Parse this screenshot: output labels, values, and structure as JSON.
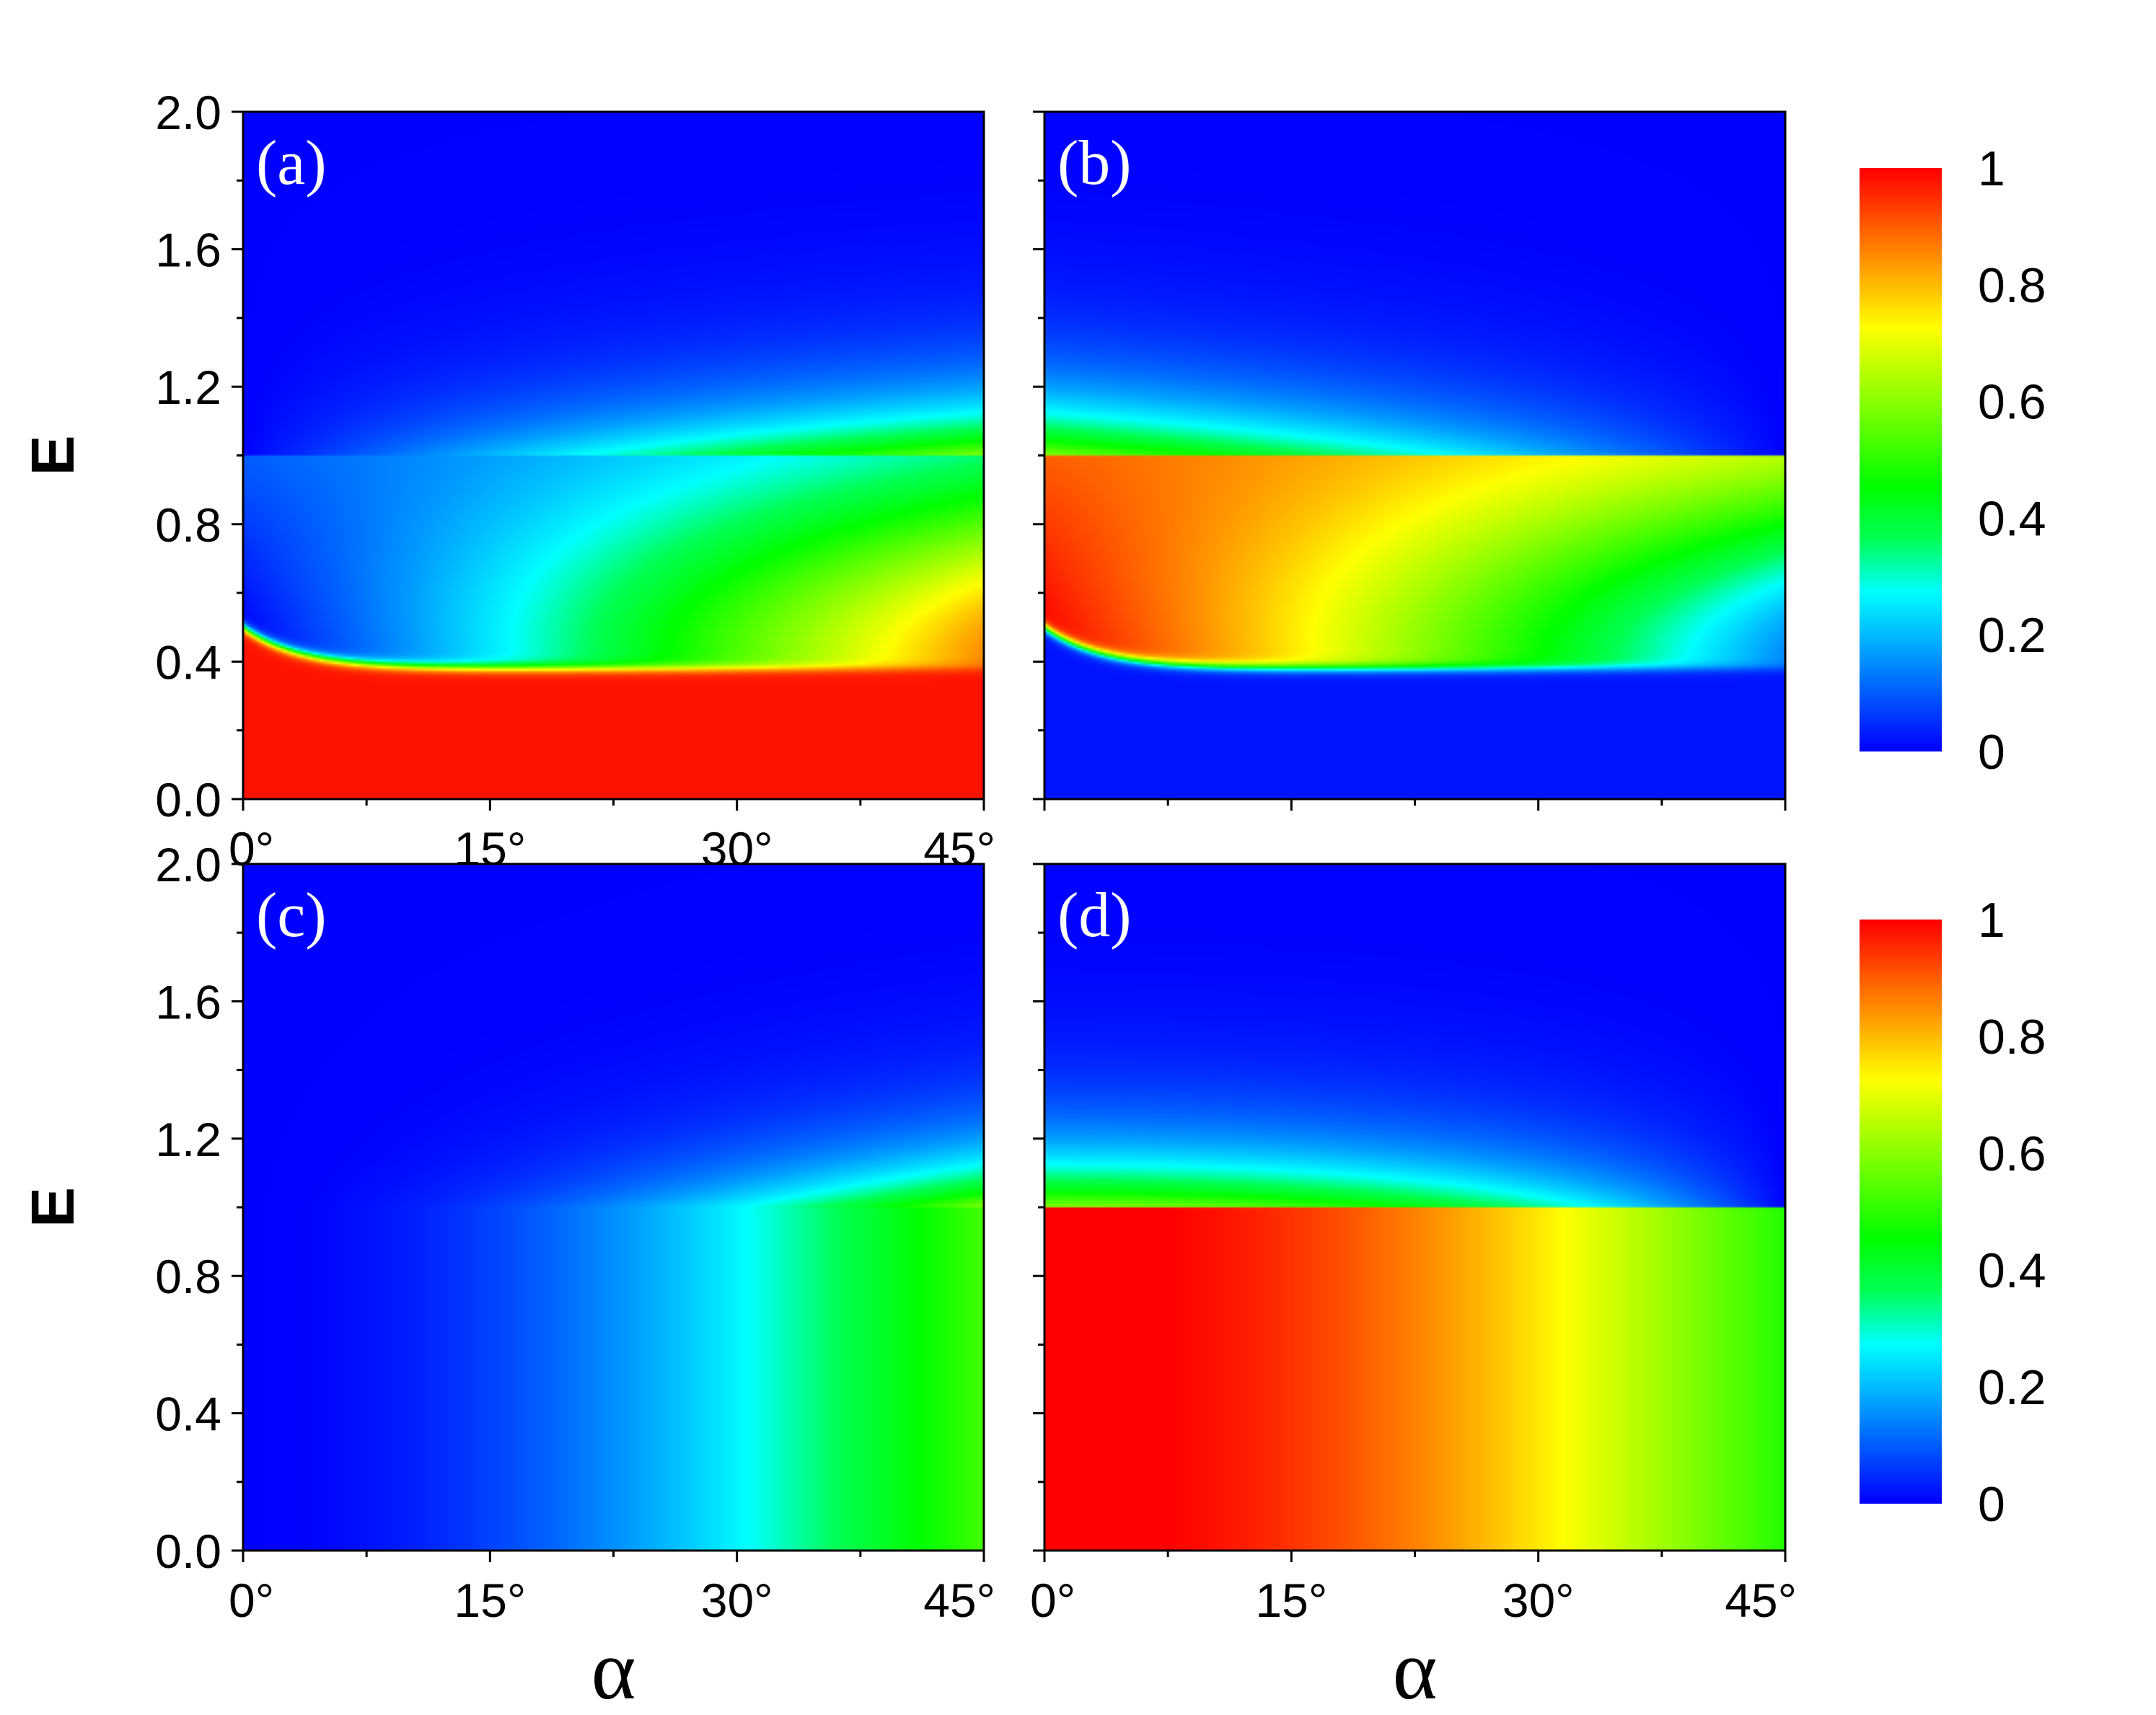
{
  "chart_data": [
    {
      "type": "heatmap",
      "panel_label": "(a)",
      "xlabel": "",
      "ylabel": "E",
      "xlim": [
        0,
        45
      ],
      "ylim": [
        0,
        2.0
      ],
      "x_ticks": [
        "0°",
        "15°",
        "30°",
        "45°"
      ],
      "x_tick_values": [
        0,
        15,
        30,
        45
      ],
      "y_ticks": [
        "0.0",
        "0.4",
        "0.8",
        "1.2",
        "1.6",
        "2.0"
      ],
      "y_tick_values": [
        0,
        0.4,
        0.8,
        1.2,
        1.6,
        2.0
      ],
      "color_range": [
        0,
        1
      ],
      "pattern": "a"
    },
    {
      "type": "heatmap",
      "panel_label": "(b)",
      "xlabel": "",
      "ylabel": "",
      "xlim": [
        0,
        45
      ],
      "ylim": [
        0,
        2.0
      ],
      "color_range": [
        0,
        1
      ],
      "pattern": "b"
    },
    {
      "type": "heatmap",
      "panel_label": "(c)",
      "xlabel": "α",
      "ylabel": "E",
      "xlim": [
        0,
        45
      ],
      "ylim": [
        0,
        2.0
      ],
      "x_ticks": [
        "0°",
        "15°",
        "30°",
        "45°"
      ],
      "x_tick_values": [
        0,
        15,
        30,
        45
      ],
      "y_ticks": [
        "0.0",
        "0.4",
        "0.8",
        "1.2",
        "1.6",
        "2.0"
      ],
      "y_tick_values": [
        0,
        0.4,
        0.8,
        1.2,
        1.6,
        2.0
      ],
      "color_range": [
        0,
        1
      ],
      "pattern": "c"
    },
    {
      "type": "heatmap",
      "panel_label": "(d)",
      "xlabel": "α",
      "ylabel": "",
      "xlim": [
        0,
        45
      ],
      "ylim": [
        0,
        2.0
      ],
      "x_ticks": [
        "0°",
        "15°",
        "30°",
        "45°"
      ],
      "x_tick_values": [
        0,
        15,
        30,
        45
      ],
      "color_range": [
        0,
        1
      ],
      "pattern": "d"
    }
  ],
  "colorbars": [
    {
      "ticks": [
        "0",
        "0.2",
        "0.4",
        "0.6",
        "0.8",
        "1"
      ],
      "tick_values": [
        0,
        0.2,
        0.4,
        0.6,
        0.8,
        1
      ]
    },
    {
      "ticks": [
        "0",
        "0.2",
        "0.4",
        "0.6",
        "0.8",
        "1"
      ],
      "tick_values": [
        0,
        0.2,
        0.4,
        0.6,
        0.8,
        1
      ]
    }
  ],
  "colormap": [
    "#0000ff",
    "#0055ff",
    "#00aaff",
    "#00ffff",
    "#00ff55",
    "#00ff00",
    "#55ff00",
    "#aaff00",
    "#ffff00",
    "#ffaa00",
    "#ff5500",
    "#ff0000"
  ]
}
